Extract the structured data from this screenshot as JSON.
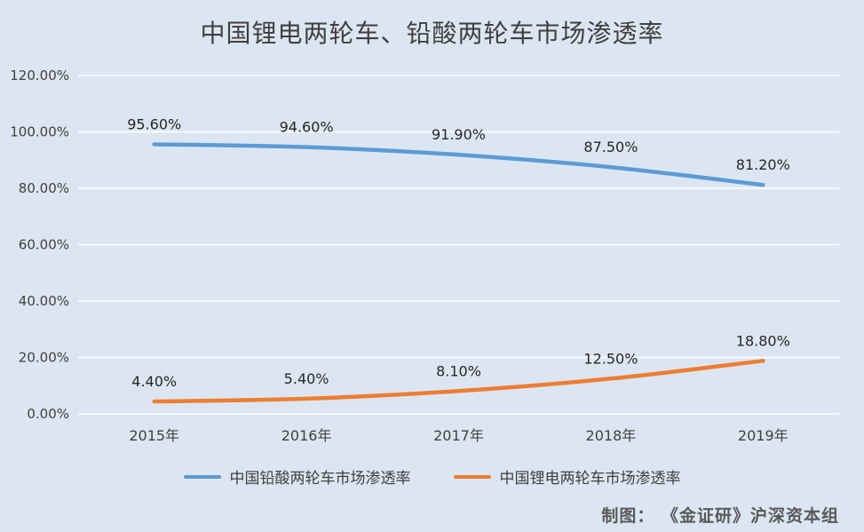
{
  "title": "中国锂电两轮车、铅酸两轮车市场渗透率",
  "credit": "制图： 《金证研》沪深资本组",
  "chart_data": {
    "type": "line",
    "title": "中国锂电两轮车、铅酸两轮车市场渗透率",
    "categories": [
      "2015年",
      "2016年",
      "2017年",
      "2018年",
      "2019年"
    ],
    "series": [
      {
        "name": "中国铅酸两轮车市场渗透率",
        "color": "#5B9BD5",
        "values": [
          95.6,
          94.6,
          91.9,
          87.5,
          81.2
        ],
        "labels": [
          "95.60%",
          "94.60%",
          "91.90%",
          "87.50%",
          "81.20%"
        ]
      },
      {
        "name": "中国锂电两轮车市场渗透率",
        "color": "#ED7D31",
        "values": [
          4.4,
          5.4,
          8.1,
          12.5,
          18.8
        ],
        "labels": [
          "4.40%",
          "5.40%",
          "8.10%",
          "12.50%",
          "18.80%"
        ]
      }
    ],
    "y_axis": {
      "min": 0,
      "max": 120,
      "step": 20,
      "tick_labels": [
        "0.00%",
        "20.00%",
        "40.00%",
        "60.00%",
        "80.00%",
        "100.00%",
        "120.00%"
      ]
    },
    "grid": true,
    "legend_position": "bottom",
    "background_color": "#DCE6F2",
    "gridline_color": "#FFFFFF",
    "axis_text_color": "#404040",
    "data_label_color": "#262626"
  }
}
